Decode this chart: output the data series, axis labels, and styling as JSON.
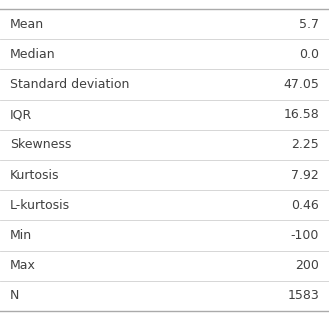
{
  "rows": [
    [
      "Mean",
      "5.7"
    ],
    [
      "Median",
      "0.0"
    ],
    [
      "Standard deviation",
      "47.05"
    ],
    [
      "IQR",
      "16.58"
    ],
    [
      "Skewness",
      "2.25"
    ],
    [
      "Kurtosis",
      "7.92"
    ],
    [
      "L-kurtosis",
      "0.46"
    ],
    [
      "Min",
      "-100"
    ],
    [
      "Max",
      "200"
    ],
    [
      "N",
      "1583"
    ]
  ],
  "bg_color": "#ffffff",
  "text_color": "#404040",
  "font_size": 9.0,
  "sep_line_color": "#d0d0d0",
  "border_line_color": "#aaaaaa"
}
